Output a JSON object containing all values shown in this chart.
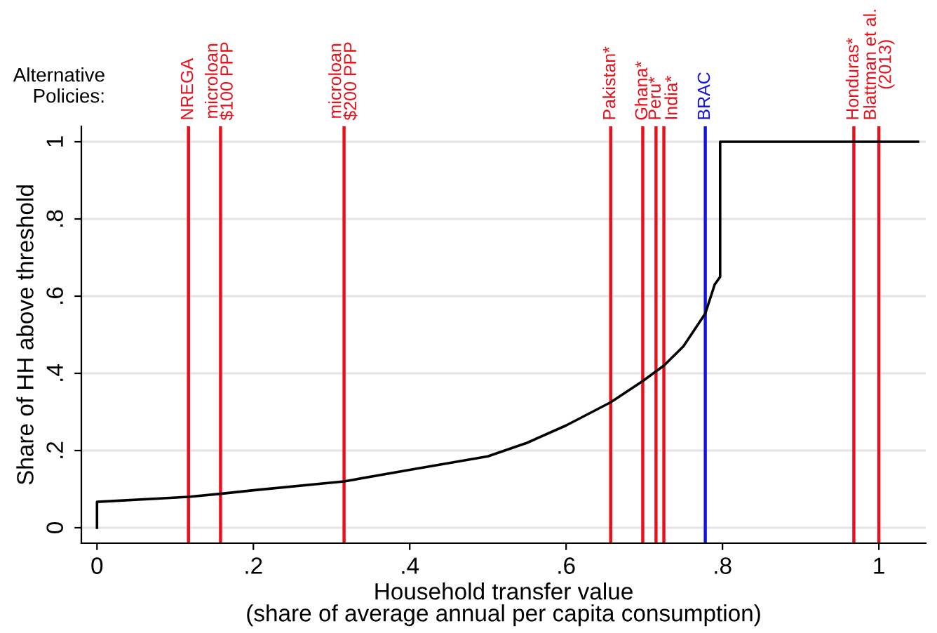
{
  "chart_data": {
    "type": "line",
    "xlabel": "Household transfer value\n(share of average annual per capita consumption)",
    "ylabel": "Share of HH above threshold",
    "annotations": [
      "Alternative\nPolicies:"
    ],
    "series": [
      {
        "color": "#000000",
        "x": [
          0,
          0,
          0.117,
          0.158,
          0.2,
          0.316,
          0.4,
          0.5,
          0.55,
          0.6,
          0.657,
          0.698,
          0.725,
          0.75,
          0.778,
          0.79,
          0.797,
          0.797,
          1.05
        ],
        "values": [
          0,
          0.067,
          0.08,
          0.088,
          0.097,
          0.12,
          0.15,
          0.185,
          0.22,
          0.265,
          0.325,
          0.38,
          0.42,
          0.47,
          0.555,
          0.63,
          0.65,
          1.0,
          1.0
        ]
      }
    ],
    "ref_lines": [
      {
        "axis": "x",
        "value": 0.117,
        "label": "NREGA",
        "color": "#e8101a"
      },
      {
        "axis": "x",
        "value": 0.158,
        "label": "microloan\n$100 PPP",
        "color": "#e8101a"
      },
      {
        "axis": "x",
        "value": 0.316,
        "label": "microloan\n$200 PPP",
        "color": "#e8101a"
      },
      {
        "axis": "x",
        "value": 0.657,
        "label": "Pakistan*",
        "color": "#e8101a"
      },
      {
        "axis": "x",
        "value": 0.698,
        "label": "Ghana*",
        "color": "#e8101a"
      },
      {
        "axis": "x",
        "value": 0.715,
        "label": "Peru*",
        "color": "#e8101a"
      },
      {
        "axis": "x",
        "value": 0.725,
        "label": "India*",
        "color": "#e8101a"
      },
      {
        "axis": "x",
        "value": 0.778,
        "label": "BRAC",
        "color": "#1515e0"
      },
      {
        "axis": "x",
        "value": 0.968,
        "label": "Honduras*",
        "color": "#e8101a"
      },
      {
        "axis": "x",
        "value": 1.0,
        "label": "Blattman et al.\n(2013)",
        "color": "#e8101a"
      }
    ],
    "xlim": [
      -0.02,
      1.06
    ],
    "ylim": [
      -0.04,
      1.04
    ],
    "xticks": [
      0,
      {
        "value": 0.2,
        "label": ".2"
      },
      {
        "value": 0.4,
        "label": ".4"
      },
      {
        "value": 0.6,
        "label": ".6"
      },
      {
        "value": 0.8,
        "label": ".8"
      },
      1
    ],
    "yticks": [
      0,
      {
        "value": 0.2,
        "label": ".2"
      },
      {
        "value": 0.4,
        "label": ".4"
      },
      {
        "value": 0.6,
        "label": ".6"
      },
      {
        "value": 0.8,
        "label": ".8"
      },
      1
    ],
    "grid": "y",
    "marker": "none",
    "line_style": "solid"
  }
}
